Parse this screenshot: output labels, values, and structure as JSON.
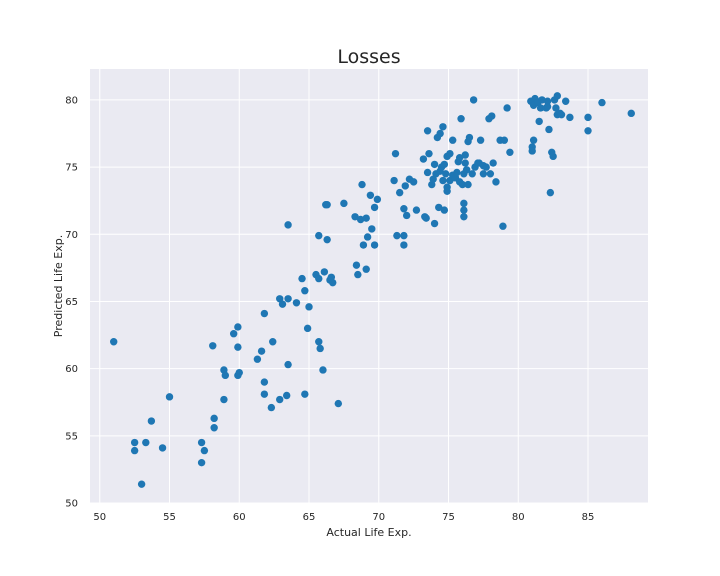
{
  "chart_data": {
    "type": "scatter",
    "title": "Losses",
    "xlabel": "Actual Life Exp.",
    "ylabel": "Predicted Life Exp.",
    "xlim": [
      49.3,
      89.3
    ],
    "ylim": [
      50,
      82.3
    ],
    "xticks": [
      50,
      55,
      60,
      65,
      70,
      75,
      80,
      85
    ],
    "yticks": [
      50,
      55,
      60,
      65,
      70,
      75,
      80
    ],
    "grid": true,
    "style": "seaborn-darkgrid",
    "point_color": "#1f77b4",
    "points": [
      [
        51.0,
        62.0
      ],
      [
        52.5,
        54.5
      ],
      [
        52.5,
        53.9
      ],
      [
        53.0,
        51.4
      ],
      [
        53.3,
        54.5
      ],
      [
        53.7,
        56.1
      ],
      [
        54.5,
        54.1
      ],
      [
        55.0,
        57.9
      ],
      [
        57.3,
        54.5
      ],
      [
        57.3,
        53.0
      ],
      [
        57.5,
        53.9
      ],
      [
        58.1,
        61.7
      ],
      [
        58.2,
        56.3
      ],
      [
        58.2,
        55.6
      ],
      [
        58.9,
        59.9
      ],
      [
        58.9,
        57.7
      ],
      [
        59.0,
        59.5
      ],
      [
        59.6,
        62.6
      ],
      [
        59.9,
        63.1
      ],
      [
        59.9,
        61.6
      ],
      [
        59.9,
        59.5
      ],
      [
        60.0,
        59.7
      ],
      [
        61.3,
        60.7
      ],
      [
        61.6,
        61.3
      ],
      [
        61.8,
        64.1
      ],
      [
        61.8,
        59.0
      ],
      [
        61.8,
        58.1
      ],
      [
        62.3,
        57.1
      ],
      [
        62.4,
        62.0
      ],
      [
        62.9,
        65.2
      ],
      [
        62.9,
        57.7
      ],
      [
        63.1,
        64.8
      ],
      [
        63.4,
        58.0
      ],
      [
        63.5,
        70.7
      ],
      [
        63.5,
        65.2
      ],
      [
        63.5,
        60.3
      ],
      [
        64.1,
        64.9
      ],
      [
        64.5,
        66.7
      ],
      [
        64.7,
        65.8
      ],
      [
        64.7,
        58.1
      ],
      [
        64.9,
        63.0
      ],
      [
        65.0,
        64.6
      ],
      [
        65.5,
        67.0
      ],
      [
        65.7,
        69.9
      ],
      [
        65.7,
        66.7
      ],
      [
        65.7,
        62.0
      ],
      [
        65.8,
        61.5
      ],
      [
        66.0,
        59.9
      ],
      [
        66.1,
        67.2
      ],
      [
        66.2,
        72.2
      ],
      [
        66.3,
        69.6
      ],
      [
        66.3,
        72.2
      ],
      [
        66.5,
        66.6
      ],
      [
        66.6,
        66.8
      ],
      [
        66.7,
        66.4
      ],
      [
        67.1,
        57.4
      ],
      [
        67.5,
        72.3
      ],
      [
        68.3,
        71.3
      ],
      [
        68.4,
        67.7
      ],
      [
        68.5,
        67.0
      ],
      [
        68.7,
        71.1
      ],
      [
        68.8,
        73.7
      ],
      [
        68.9,
        69.2
      ],
      [
        69.1,
        67.4
      ],
      [
        69.1,
        71.2
      ],
      [
        69.2,
        69.8
      ],
      [
        69.4,
        72.9
      ],
      [
        69.5,
        70.4
      ],
      [
        69.7,
        69.2
      ],
      [
        69.7,
        72.0
      ],
      [
        69.9,
        72.6
      ],
      [
        71.1,
        74.0
      ],
      [
        71.2,
        76.0
      ],
      [
        71.3,
        69.9
      ],
      [
        71.5,
        73.1
      ],
      [
        71.8,
        71.9
      ],
      [
        71.8,
        69.2
      ],
      [
        71.8,
        69.9
      ],
      [
        71.9,
        73.6
      ],
      [
        72.0,
        71.4
      ],
      [
        72.2,
        74.1
      ],
      [
        72.5,
        73.9
      ],
      [
        72.7,
        71.8
      ],
      [
        73.2,
        75.6
      ],
      [
        73.3,
        71.3
      ],
      [
        73.4,
        71.2
      ],
      [
        73.5,
        74.6
      ],
      [
        73.5,
        77.7
      ],
      [
        73.6,
        76.0
      ],
      [
        73.8,
        73.7
      ],
      [
        73.9,
        74.1
      ],
      [
        74.0,
        75.2
      ],
      [
        74.0,
        70.8
      ],
      [
        74.1,
        74.5
      ],
      [
        74.2,
        77.2
      ],
      [
        74.3,
        72.0
      ],
      [
        74.4,
        74.7
      ],
      [
        74.4,
        77.5
      ],
      [
        74.5,
        75.0
      ],
      [
        74.6,
        74.0
      ],
      [
        74.6,
        78.0
      ],
      [
        74.7,
        71.8
      ],
      [
        74.7,
        75.2
      ],
      [
        74.8,
        74.5
      ],
      [
        74.9,
        75.8
      ],
      [
        74.9,
        73.5
      ],
      [
        74.9,
        73.2
      ],
      [
        75.1,
        74.0
      ],
      [
        75.1,
        76.0
      ],
      [
        75.3,
        74.4
      ],
      [
        75.3,
        77.0
      ],
      [
        75.5,
        74.2
      ],
      [
        75.6,
        74.6
      ],
      [
        75.7,
        75.4
      ],
      [
        75.8,
        73.9
      ],
      [
        75.8,
        75.7
      ],
      [
        75.9,
        78.6
      ],
      [
        76.0,
        73.7
      ],
      [
        76.1,
        72.3
      ],
      [
        76.1,
        71.3
      ],
      [
        76.1,
        71.8
      ],
      [
        76.1,
        74.5
      ],
      [
        76.2,
        75.9
      ],
      [
        76.2,
        75.3
      ],
      [
        76.3,
        74.8
      ],
      [
        76.4,
        73.7
      ],
      [
        76.4,
        76.9
      ],
      [
        76.5,
        77.2
      ],
      [
        76.7,
        74.5
      ],
      [
        76.8,
        80.0
      ],
      [
        76.9,
        75.0
      ],
      [
        77.1,
        75.3
      ],
      [
        77.2,
        75.3
      ],
      [
        77.3,
        77.0
      ],
      [
        77.5,
        74.5
      ],
      [
        77.5,
        75.1
      ],
      [
        77.7,
        75.0
      ],
      [
        77.9,
        78.6
      ],
      [
        78.0,
        74.5
      ],
      [
        78.1,
        78.8
      ],
      [
        78.2,
        75.3
      ],
      [
        78.4,
        73.9
      ],
      [
        78.7,
        77.0
      ],
      [
        78.9,
        70.6
      ],
      [
        79.0,
        77.0
      ],
      [
        79.2,
        79.4
      ],
      [
        79.4,
        76.1
      ],
      [
        80.9,
        79.9
      ],
      [
        81.0,
        76.5
      ],
      [
        81.0,
        76.2
      ],
      [
        81.1,
        77.0
      ],
      [
        81.1,
        79.6
      ],
      [
        81.2,
        80.1
      ],
      [
        81.4,
        79.8
      ],
      [
        81.5,
        78.4
      ],
      [
        81.6,
        79.4
      ],
      [
        81.7,
        80.0
      ],
      [
        82.0,
        79.4
      ],
      [
        82.1,
        79.9
      ],
      [
        82.1,
        79.5
      ],
      [
        82.2,
        77.8
      ],
      [
        82.3,
        73.1
      ],
      [
        82.4,
        76.1
      ],
      [
        82.5,
        75.8
      ],
      [
        82.6,
        80.0
      ],
      [
        82.7,
        79.4
      ],
      [
        82.8,
        80.3
      ],
      [
        82.8,
        78.9
      ],
      [
        83.0,
        79.0
      ],
      [
        83.1,
        78.9
      ],
      [
        83.4,
        79.9
      ],
      [
        83.7,
        78.7
      ],
      [
        85.0,
        78.7
      ],
      [
        85.0,
        77.7
      ],
      [
        86.0,
        79.8
      ],
      [
        88.1,
        79.0
      ]
    ]
  }
}
